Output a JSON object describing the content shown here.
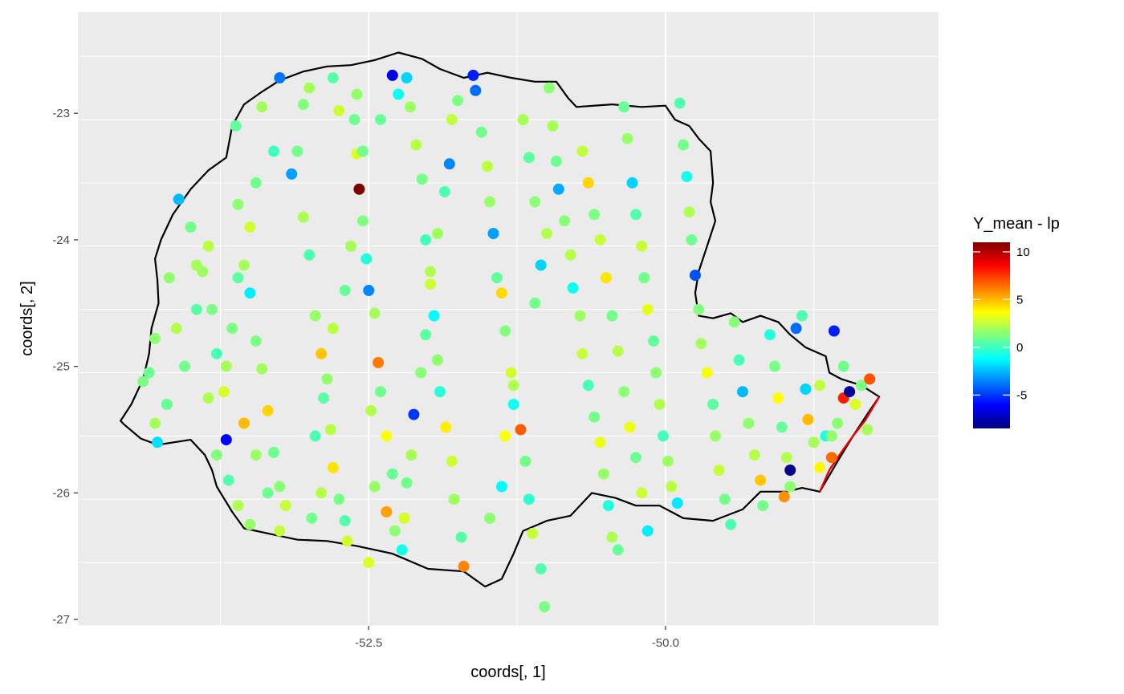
{
  "chart_data": {
    "type": "scatter",
    "xlabel": "coords[, 1]",
    "ylabel": "coords[, 2]",
    "xlim": [
      -54.95,
      -47.7
    ],
    "ylim": [
      -27.05,
      -22.2
    ],
    "x_ticks": [
      -52.5,
      -50.0
    ],
    "x_tick_labels": [
      "-52.5",
      "-50.0"
    ],
    "y_ticks": [
      -27,
      -26,
      -25,
      -24,
      -23
    ],
    "y_tick_labels": [
      "-27",
      "-26",
      "-25",
      "-24",
      "-23"
    ],
    "grid": true,
    "legend": {
      "title": "Y_mean - lp",
      "placement": "right",
      "range": [
        -8.5,
        11
      ],
      "ticks": [
        -5,
        0,
        5,
        10
      ],
      "tick_labels": [
        "-5",
        "0",
        "5",
        "10"
      ],
      "colormap": [
        "#00007f",
        "#0000ff",
        "#007fff",
        "#00ffff",
        "#7fff7f",
        "#ffff00",
        "#ff7f00",
        "#ff0000",
        "#7f0000"
      ]
    },
    "boundary": [
      [
        -54.56,
        -25.46
      ],
      [
        -54.42,
        -25.57
      ],
      [
        -54.28,
        -25.62
      ],
      [
        -54.0,
        -25.58
      ],
      [
        -53.88,
        -25.7
      ],
      [
        -53.82,
        -25.82
      ],
      [
        -53.78,
        -25.95
      ],
      [
        -53.65,
        -26.15
      ],
      [
        -53.55,
        -26.28
      ],
      [
        -53.3,
        -26.33
      ],
      [
        -53.1,
        -26.37
      ],
      [
        -52.85,
        -26.38
      ],
      [
        -52.6,
        -26.42
      ],
      [
        -52.3,
        -26.48
      ],
      [
        -52.0,
        -26.6
      ],
      [
        -51.7,
        -26.62
      ],
      [
        -51.52,
        -26.74
      ],
      [
        -51.38,
        -26.68
      ],
      [
        -51.28,
        -26.48
      ],
      [
        -51.2,
        -26.3
      ],
      [
        -51.0,
        -26.22
      ],
      [
        -50.8,
        -26.18
      ],
      [
        -50.62,
        -26.0
      ],
      [
        -50.42,
        -26.04
      ],
      [
        -50.25,
        -26.1
      ],
      [
        -50.05,
        -26.1
      ],
      [
        -49.85,
        -26.2
      ],
      [
        -49.6,
        -26.22
      ],
      [
        -49.35,
        -26.13
      ],
      [
        -49.2,
        -25.99
      ],
      [
        -48.98,
        -25.99
      ],
      [
        -48.85,
        -25.96
      ],
      [
        -48.7,
        -25.99
      ],
      [
        -48.55,
        -25.75
      ],
      [
        -48.42,
        -25.55
      ],
      [
        -48.28,
        -25.35
      ],
      [
        -48.2,
        -25.24
      ],
      [
        -48.35,
        -25.15
      ],
      [
        -48.52,
        -25.1
      ],
      [
        -48.62,
        -25.05
      ],
      [
        -48.65,
        -24.92
      ],
      [
        -48.82,
        -24.85
      ],
      [
        -48.95,
        -24.75
      ],
      [
        -49.05,
        -24.65
      ],
      [
        -49.2,
        -24.6
      ],
      [
        -49.35,
        -24.65
      ],
      [
        -49.45,
        -24.58
      ],
      [
        -49.6,
        -24.62
      ],
      [
        -49.72,
        -24.6
      ],
      [
        -49.75,
        -24.42
      ],
      [
        -49.72,
        -24.25
      ],
      [
        -49.65,
        -24.05
      ],
      [
        -49.58,
        -23.85
      ],
      [
        -49.62,
        -23.7
      ],
      [
        -49.6,
        -23.55
      ],
      [
        -49.62,
        -23.3
      ],
      [
        -49.72,
        -23.2
      ],
      [
        -49.8,
        -23.1
      ],
      [
        -49.92,
        -23.05
      ],
      [
        -50.0,
        -22.94
      ],
      [
        -50.2,
        -22.95
      ],
      [
        -50.45,
        -22.93
      ],
      [
        -50.75,
        -22.95
      ],
      [
        -50.82,
        -22.88
      ],
      [
        -50.92,
        -22.75
      ],
      [
        -51.1,
        -22.75
      ],
      [
        -51.3,
        -22.72
      ],
      [
        -51.5,
        -22.68
      ],
      [
        -51.7,
        -22.72
      ],
      [
        -51.9,
        -22.65
      ],
      [
        -52.05,
        -22.57
      ],
      [
        -52.25,
        -22.52
      ],
      [
        -52.45,
        -22.58
      ],
      [
        -52.65,
        -22.62
      ],
      [
        -52.85,
        -22.63
      ],
      [
        -53.05,
        -22.67
      ],
      [
        -53.25,
        -22.74
      ],
      [
        -53.4,
        -22.83
      ],
      [
        -53.55,
        -22.93
      ],
      [
        -53.65,
        -23.1
      ],
      [
        -53.7,
        -23.35
      ],
      [
        -53.85,
        -23.45
      ],
      [
        -54.0,
        -23.6
      ],
      [
        -54.15,
        -23.8
      ],
      [
        -54.25,
        -24.0
      ],
      [
        -54.3,
        -24.15
      ],
      [
        -54.28,
        -24.32
      ],
      [
        -54.27,
        -24.5
      ],
      [
        -54.33,
        -24.7
      ],
      [
        -54.35,
        -24.9
      ],
      [
        -54.4,
        -25.1
      ],
      [
        -54.5,
        -25.3
      ],
      [
        -54.59,
        -25.43
      ],
      [
        -54.56,
        -25.46
      ]
    ],
    "coast": [
      [
        -48.7,
        -25.99
      ],
      [
        -48.62,
        -25.82
      ],
      [
        -48.52,
        -25.68
      ],
      [
        -48.42,
        -25.55
      ],
      [
        -48.32,
        -25.43
      ],
      [
        -48.2,
        -25.24
      ]
    ],
    "points": [
      [
        -54.4,
        -25.12,
        1.2
      ],
      [
        -54.3,
        -25.45,
        2.0
      ],
      [
        -54.2,
        -25.3,
        0.8
      ],
      [
        -54.18,
        -24.3,
        1.6
      ],
      [
        -54.12,
        -24.7,
        2.2
      ],
      [
        -54.05,
        -25.0,
        1.0
      ],
      [
        -53.95,
        -24.55,
        0.5
      ],
      [
        -53.9,
        -24.25,
        1.8
      ],
      [
        -53.85,
        -24.05,
        2.4
      ],
      [
        -53.82,
        -24.55,
        1.2
      ],
      [
        -53.78,
        -24.9,
        0.2
      ],
      [
        -53.72,
        -25.2,
        2.9
      ],
      [
        -53.7,
        -25.58,
        -6.0
      ],
      [
        -53.62,
        -23.1,
        0.7
      ],
      [
        -53.6,
        -23.72,
        1.5
      ],
      [
        -53.55,
        -24.2,
        2.0
      ],
      [
        -53.5,
        -24.42,
        -1.5
      ],
      [
        -53.45,
        -24.8,
        1.2
      ],
      [
        -53.4,
        -25.02,
        1.9
      ],
      [
        -53.35,
        -25.35,
        4.5
      ],
      [
        -53.3,
        -25.68,
        0.9
      ],
      [
        -53.25,
        -25.95,
        1.4
      ],
      [
        -53.2,
        -26.1,
        2.6
      ],
      [
        -53.15,
        -23.48,
        -3.0
      ],
      [
        -53.1,
        -23.3,
        1.0
      ],
      [
        -53.05,
        -23.82,
        2.1
      ],
      [
        -53.0,
        -24.12,
        0.3
      ],
      [
        -52.95,
        -24.6,
        1.7
      ],
      [
        -52.9,
        -24.9,
        4.8
      ],
      [
        -52.88,
        -25.25,
        0.6
      ],
      [
        -52.82,
        -25.5,
        2.3
      ],
      [
        -52.8,
        -25.8,
        4.2
      ],
      [
        -52.75,
        -26.05,
        1.1
      ],
      [
        -52.7,
        -26.22,
        0.4
      ],
      [
        -52.68,
        -26.38,
        2.8
      ],
      [
        -52.62,
        -23.05,
        0.9
      ],
      [
        -52.6,
        -23.32,
        3.0
      ],
      [
        -52.58,
        -23.6,
        11.0
      ],
      [
        -52.55,
        -23.85,
        1.3
      ],
      [
        -52.52,
        -24.15,
        -0.5
      ],
      [
        -52.5,
        -24.4,
        -3.5
      ],
      [
        -52.45,
        -24.58,
        2.0
      ],
      [
        -52.42,
        -24.97,
        6.2
      ],
      [
        -52.4,
        -25.2,
        1.0
      ],
      [
        -52.35,
        -25.55,
        3.6
      ],
      [
        -52.3,
        -25.85,
        0.8
      ],
      [
        -52.28,
        -26.3,
        1.5
      ],
      [
        -52.22,
        -26.45,
        -0.8
      ],
      [
        -52.18,
        -22.72,
        -2.0
      ],
      [
        -52.15,
        -22.95,
        1.8
      ],
      [
        -52.1,
        -23.25,
        2.3
      ],
      [
        -52.05,
        -23.52,
        1.1
      ],
      [
        -52.02,
        -24.0,
        0.1
      ],
      [
        -51.98,
        -24.25,
        2.2
      ],
      [
        -51.95,
        -24.6,
        -1.2
      ],
      [
        -51.92,
        -24.95,
        1.6
      ],
      [
        -51.9,
        -25.2,
        -0.4
      ],
      [
        -51.85,
        -25.48,
        4.0
      ],
      [
        -51.8,
        -25.75,
        2.7
      ],
      [
        -51.78,
        -26.05,
        1.9
      ],
      [
        -51.72,
        -26.35,
        0.5
      ],
      [
        -51.7,
        -26.58,
        6.0
      ],
      [
        -51.62,
        -22.7,
        -5.5
      ],
      [
        -51.6,
        -22.82,
        -4.0
      ],
      [
        -51.55,
        -23.15,
        1.0
      ],
      [
        -51.5,
        -23.42,
        2.4
      ],
      [
        -51.48,
        -23.7,
        1.7
      ],
      [
        -51.45,
        -23.95,
        -3.0
      ],
      [
        -51.42,
        -24.3,
        0.7
      ],
      [
        -51.38,
        -24.42,
        4.4
      ],
      [
        -51.35,
        -24.72,
        1.3
      ],
      [
        -51.3,
        -25.05,
        2.8
      ],
      [
        -51.28,
        -25.3,
        -0.9
      ],
      [
        -51.22,
        -25.5,
        6.8
      ],
      [
        -51.18,
        -25.75,
        1.0
      ],
      [
        -51.15,
        -26.05,
        -0.3
      ],
      [
        -51.12,
        -26.32,
        2.6
      ],
      [
        -51.05,
        -26.6,
        0.4
      ],
      [
        -51.02,
        -26.9,
        1.2
      ],
      [
        -50.98,
        -22.8,
        1.5
      ],
      [
        -50.95,
        -23.1,
        2.0
      ],
      [
        -50.92,
        -23.38,
        0.9
      ],
      [
        -50.9,
        -23.6,
        -2.8
      ],
      [
        -50.85,
        -23.85,
        1.4
      ],
      [
        -50.8,
        -24.12,
        2.3
      ],
      [
        -50.78,
        -24.38,
        -1.0
      ],
      [
        -50.72,
        -24.6,
        1.8
      ],
      [
        -50.7,
        -24.9,
        2.6
      ],
      [
        -50.65,
        -25.15,
        0.2
      ],
      [
        -50.6,
        -25.4,
        1.1
      ],
      [
        -50.55,
        -25.6,
        3.3
      ],
      [
        -50.52,
        -25.85,
        1.7
      ],
      [
        -50.48,
        -26.1,
        -0.6
      ],
      [
        -50.45,
        -26.35,
        2.1
      ],
      [
        -50.4,
        -26.45,
        0.8
      ],
      [
        -51.75,
        -22.9,
        1.2
      ],
      [
        -51.8,
        -23.05,
        2.5
      ],
      [
        -51.82,
        -23.4,
        -3.5
      ],
      [
        -51.86,
        -23.62,
        0.3
      ],
      [
        -51.92,
        -23.95,
        1.9
      ],
      [
        -51.98,
        -24.35,
        2.7
      ],
      [
        -52.02,
        -24.75,
        0.6
      ],
      [
        -52.06,
        -25.05,
        1.4
      ],
      [
        -52.12,
        -25.38,
        -5.0
      ],
      [
        -52.14,
        -25.7,
        2.0
      ],
      [
        -52.18,
        -25.92,
        1.0
      ],
      [
        -52.2,
        -26.2,
        2.9
      ],
      [
        -50.35,
        -22.95,
        0.8
      ],
      [
        -50.32,
        -23.2,
        1.7
      ],
      [
        -50.28,
        -23.55,
        -2.0
      ],
      [
        -50.25,
        -23.8,
        0.4
      ],
      [
        -50.2,
        -24.05,
        2.6
      ],
      [
        -50.18,
        -24.3,
        1.0
      ],
      [
        -50.15,
        -24.55,
        3.2
      ],
      [
        -50.1,
        -24.8,
        0.7
      ],
      [
        -50.08,
        -25.05,
        1.5
      ],
      [
        -50.05,
        -25.3,
        2.2
      ],
      [
        -50.02,
        -25.55,
        0.1
      ],
      [
        -49.98,
        -25.75,
        1.8
      ],
      [
        -49.95,
        -25.95,
        2.4
      ],
      [
        -49.9,
        -26.08,
        -1.6
      ],
      [
        -49.88,
        -22.92,
        0.4
      ],
      [
        -49.85,
        -23.25,
        1.0
      ],
      [
        -49.82,
        -23.5,
        -0.8
      ],
      [
        -49.8,
        -23.78,
        2.1
      ],
      [
        -49.78,
        -24.0,
        0.9
      ],
      [
        -49.75,
        -24.28,
        -4.5
      ],
      [
        -49.72,
        -24.55,
        1.3
      ],
      [
        -49.7,
        -24.82,
        2.0
      ],
      [
        -49.65,
        -25.05,
        3.5
      ],
      [
        -49.6,
        -25.3,
        0.6
      ],
      [
        -49.58,
        -25.55,
        1.7
      ],
      [
        -49.55,
        -25.82,
        2.6
      ],
      [
        -49.5,
        -26.05,
        1.0
      ],
      [
        -49.45,
        -26.25,
        0.3
      ],
      [
        -49.42,
        -24.65,
        1.4
      ],
      [
        -49.38,
        -24.95,
        0.2
      ],
      [
        -49.35,
        -25.2,
        -2.5
      ],
      [
        -49.3,
        -25.45,
        1.6
      ],
      [
        -49.25,
        -25.7,
        2.3
      ],
      [
        -49.2,
        -25.9,
        4.8
      ],
      [
        -49.18,
        -26.1,
        1.0
      ],
      [
        -49.12,
        -24.75,
        -0.5
      ],
      [
        -49.08,
        -25.0,
        1.1
      ],
      [
        -49.05,
        -25.25,
        3.7
      ],
      [
        -49.02,
        -25.48,
        0.8
      ],
      [
        -48.98,
        -25.72,
        2.2
      ],
      [
        -48.95,
        -25.95,
        1.5
      ],
      [
        -48.9,
        -24.7,
        -4.0
      ],
      [
        -48.85,
        -24.6,
        0.3
      ],
      [
        -48.82,
        -25.18,
        -2.0
      ],
      [
        -48.8,
        -25.42,
        5.0
      ],
      [
        -48.75,
        -25.6,
        2.0
      ],
      [
        -48.7,
        -25.8,
        3.8
      ],
      [
        -48.65,
        -25.55,
        -0.6
      ],
      [
        -48.6,
        -25.72,
        6.5
      ],
      [
        -48.55,
        -25.45,
        1.4
      ],
      [
        -48.5,
        -25.25,
        8.0
      ],
      [
        -48.45,
        -25.2,
        -8.0
      ],
      [
        -48.4,
        -25.3,
        3.0
      ],
      [
        -48.35,
        -25.15,
        1.2
      ],
      [
        -48.3,
        -25.5,
        2.0
      ],
      [
        -48.28,
        -25.1,
        7.0
      ],
      [
        -48.95,
        -25.82,
        -8.3
      ],
      [
        -49.0,
        -26.03,
        5.8
      ],
      [
        -48.6,
        -25.55,
        1.6
      ],
      [
        -48.58,
        -24.72,
        -5.5
      ],
      [
        -48.5,
        -25.0,
        1.0
      ],
      [
        -48.7,
        -25.15,
        2.5
      ],
      [
        -53.0,
        -22.8,
        2.0
      ],
      [
        -53.05,
        -22.93,
        1.3
      ],
      [
        -52.8,
        -22.72,
        0.5
      ],
      [
        -52.75,
        -22.98,
        2.7
      ],
      [
        -52.6,
        -22.85,
        1.6
      ],
      [
        -52.3,
        -22.7,
        -6.5
      ],
      [
        -52.25,
        -22.85,
        -1.0
      ],
      [
        -52.4,
        -23.05,
        0.8
      ],
      [
        -53.25,
        -22.72,
        -3.8
      ],
      [
        -53.4,
        -22.95,
        1.9
      ],
      [
        -53.3,
        -23.3,
        0.0
      ],
      [
        -53.45,
        -23.55,
        1.0
      ],
      [
        -53.5,
        -23.9,
        2.8
      ],
      [
        -53.6,
        -24.3,
        0.6
      ],
      [
        -53.65,
        -24.7,
        1.2
      ],
      [
        -53.7,
        -25.0,
        2.0
      ],
      [
        -53.55,
        -25.45,
        5.0
      ],
      [
        -53.45,
        -25.7,
        1.8
      ],
      [
        -53.35,
        -26.0,
        0.9
      ],
      [
        -53.25,
        -26.3,
        2.5
      ],
      [
        -54.1,
        -23.68,
        -2.5
      ],
      [
        -54.0,
        -23.9,
        1.0
      ],
      [
        -53.95,
        -24.2,
        2.0
      ],
      [
        -54.3,
        -24.78,
        1.5
      ],
      [
        -54.35,
        -25.05,
        0.9
      ],
      [
        -54.28,
        -25.6,
        -1.8
      ],
      [
        -53.85,
        -25.25,
        2.1
      ],
      [
        -53.78,
        -25.7,
        1.3
      ],
      [
        -53.68,
        -25.9,
        0.4
      ],
      [
        -53.6,
        -26.1,
        2.2
      ],
      [
        -53.5,
        -26.25,
        1.7
      ],
      [
        -52.9,
        -26.0,
        2.3
      ],
      [
        -52.98,
        -26.2,
        1.0
      ],
      [
        -52.95,
        -25.55,
        0.3
      ],
      [
        -52.85,
        -25.1,
        1.6
      ],
      [
        -52.8,
        -24.7,
        2.4
      ],
      [
        -52.7,
        -24.4,
        0.8
      ],
      [
        -52.65,
        -24.05,
        2.0
      ],
      [
        -52.55,
        -23.3,
        1.0
      ],
      [
        -52.48,
        -25.35,
        2.3
      ],
      [
        -52.45,
        -25.95,
        1.7
      ],
      [
        -52.35,
        -26.15,
        5.5
      ],
      [
        -52.5,
        -26.55,
        3.0
      ],
      [
        -51.48,
        -26.2,
        1.5
      ],
      [
        -51.38,
        -25.95,
        -1.2
      ],
      [
        -51.35,
        -25.55,
        3.6
      ],
      [
        -51.28,
        -25.15,
        2.2
      ],
      [
        -51.1,
        -24.5,
        1.0
      ],
      [
        -51.05,
        -24.2,
        -2.0
      ],
      [
        -51.0,
        -23.95,
        2.2
      ],
      [
        -51.1,
        -23.7,
        1.5
      ],
      [
        -51.15,
        -23.35,
        0.6
      ],
      [
        -51.2,
        -23.05,
        2.0
      ],
      [
        -50.7,
        -23.3,
        2.5
      ],
      [
        -50.65,
        -23.55,
        4.5
      ],
      [
        -50.6,
        -23.8,
        1.2
      ],
      [
        -50.55,
        -24.0,
        2.6
      ],
      [
        -50.5,
        -24.3,
        4.2
      ],
      [
        -50.45,
        -24.6,
        1.0
      ],
      [
        -50.4,
        -24.88,
        2.3
      ],
      [
        -50.35,
        -25.2,
        1.5
      ],
      [
        -50.3,
        -25.48,
        3.4
      ],
      [
        -50.25,
        -25.72,
        0.9
      ],
      [
        -50.2,
        -26.0,
        2.7
      ],
      [
        -50.15,
        -26.3,
        -1.5
      ]
    ]
  }
}
